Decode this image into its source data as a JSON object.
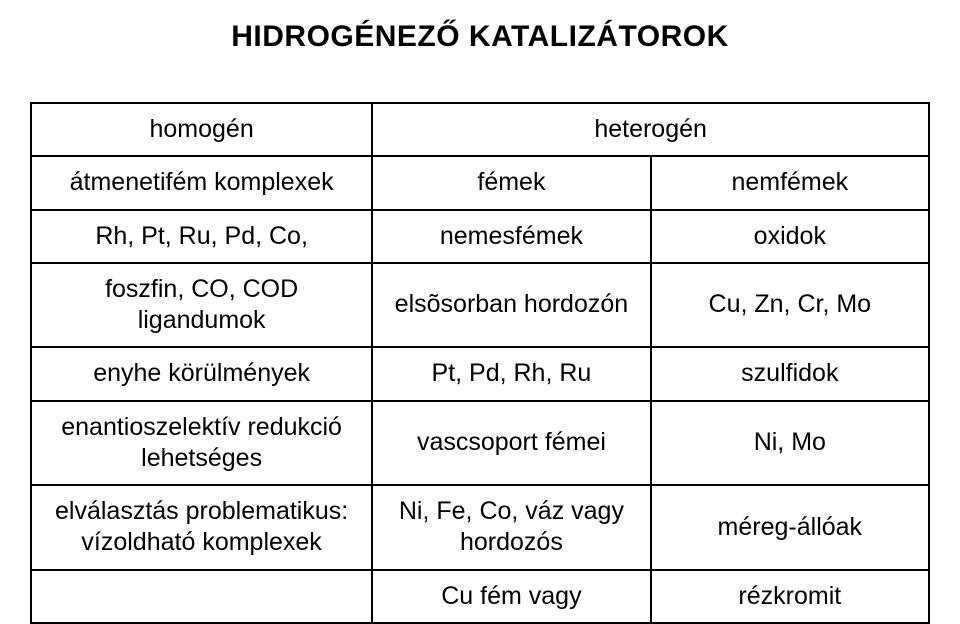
{
  "title": "HIDROGÉNEZŐ KATALIZÁTOROK",
  "table": {
    "type": "table",
    "border_color": "#000000",
    "background_color": "#ffffff",
    "text_color": "#000000",
    "title_fontsize": 30,
    "cell_fontsize": 25,
    "header": {
      "col1": "homogén",
      "col23_span": "heterogén",
      "sub_col1": "átmenetifém komplexek",
      "sub_col2": "fémek",
      "sub_col3": "nemfémek"
    },
    "rows": [
      {
        "c1": "Rh, Pt, Ru, Pd, Co,",
        "c2": "nemesfémek",
        "c3": "oxidok"
      },
      {
        "c1": "foszfin, CO, COD\nligandumok",
        "c2": "elsõsorban hordozón",
        "c3": "Cu, Zn, Cr, Mo"
      },
      {
        "c1": "enyhe körülmények",
        "c2": "Pt, Pd, Rh, Ru",
        "c3": "szulfidok"
      },
      {
        "c1": "enantioszelektív redukció\nlehetséges",
        "c2": "vascsoport fémei",
        "c3": "Ni, Mo"
      },
      {
        "c1": "elválasztás problematikus:\nvízoldható komplexek",
        "c2": "Ni, Fe, Co, váz vagy\nhordozós",
        "c3": "méreg-állóak"
      },
      {
        "c1": "",
        "c2": "Cu fém vagy",
        "c3": "rézkromit"
      }
    ]
  }
}
